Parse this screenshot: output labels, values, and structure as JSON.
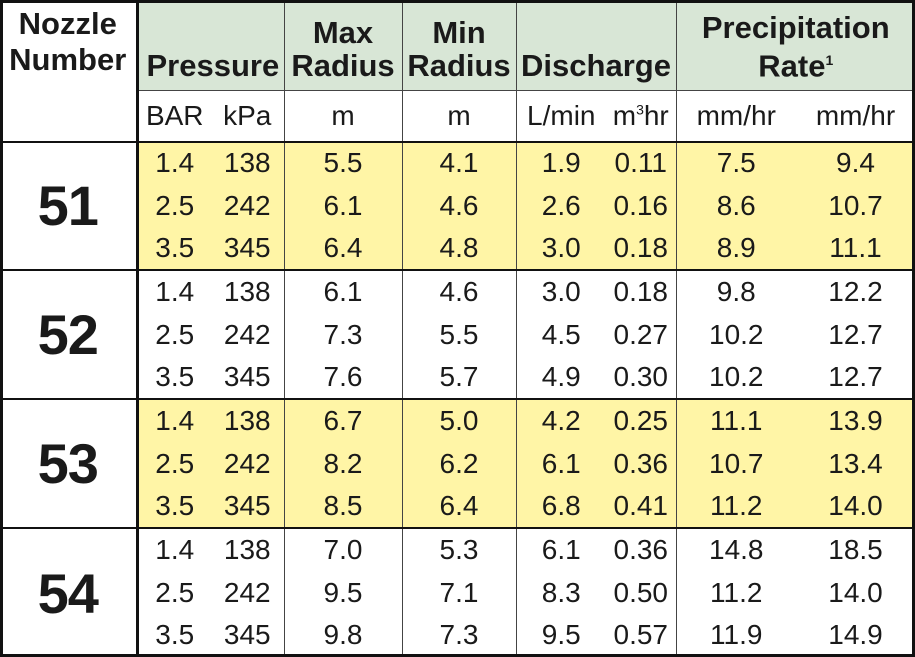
{
  "headers": {
    "nozzle_line1": "Nozzle",
    "nozzle_line2": "Number",
    "pressure": "Pressure",
    "max_radius_line1": "Max",
    "max_radius_line2": "Radius",
    "min_radius_line1": "Min",
    "min_radius_line2": "Radius",
    "discharge": "Discharge",
    "precip_line1": "Precipitation",
    "precip_line2": "Rate",
    "precip_footnote": "1"
  },
  "units": {
    "bar": "BAR",
    "kpa": "kPa",
    "max_radius": "m",
    "min_radius": "m",
    "lmin": "L/min",
    "m3hr_m": "m",
    "m3hr_sup": "3",
    "m3hr_hr": "hr",
    "precip_a": "mm/hr",
    "precip_b": "mm/hr"
  },
  "groups": [
    {
      "nozzle": "51",
      "highlight": true,
      "rows": [
        [
          "1.4",
          "138",
          "5.5",
          "4.1",
          "1.9",
          "0.11",
          "7.5",
          "9.4"
        ],
        [
          "2.5",
          "242",
          "6.1",
          "4.6",
          "2.6",
          "0.16",
          "8.6",
          "10.7"
        ],
        [
          "3.5",
          "345",
          "6.4",
          "4.8",
          "3.0",
          "0.18",
          "8.9",
          "11.1"
        ]
      ]
    },
    {
      "nozzle": "52",
      "highlight": false,
      "rows": [
        [
          "1.4",
          "138",
          "6.1",
          "4.6",
          "3.0",
          "0.18",
          "9.8",
          "12.2"
        ],
        [
          "2.5",
          "242",
          "7.3",
          "5.5",
          "4.5",
          "0.27",
          "10.2",
          "12.7"
        ],
        [
          "3.5",
          "345",
          "7.6",
          "5.7",
          "4.9",
          "0.30",
          "10.2",
          "12.7"
        ]
      ]
    },
    {
      "nozzle": "53",
      "highlight": true,
      "rows": [
        [
          "1.4",
          "138",
          "6.7",
          "5.0",
          "4.2",
          "0.25",
          "11.1",
          "13.9"
        ],
        [
          "2.5",
          "242",
          "8.2",
          "6.2",
          "6.1",
          "0.36",
          "10.7",
          "13.4"
        ],
        [
          "3.5",
          "345",
          "8.5",
          "6.4",
          "6.8",
          "0.41",
          "11.2",
          "14.0"
        ]
      ]
    },
    {
      "nozzle": "54",
      "highlight": false,
      "rows": [
        [
          "1.4",
          "138",
          "7.0",
          "5.3",
          "6.1",
          "0.36",
          "14.8",
          "18.5"
        ],
        [
          "2.5",
          "242",
          "9.5",
          "7.1",
          "8.3",
          "0.50",
          "11.2",
          "14.0"
        ],
        [
          "3.5",
          "345",
          "9.8",
          "7.3",
          "9.5",
          "0.57",
          "11.9",
          "14.9"
        ]
      ]
    }
  ],
  "colors": {
    "header_bg": "#d8e6d6",
    "highlight_bg": "#fff5a6",
    "border": "#111111"
  }
}
